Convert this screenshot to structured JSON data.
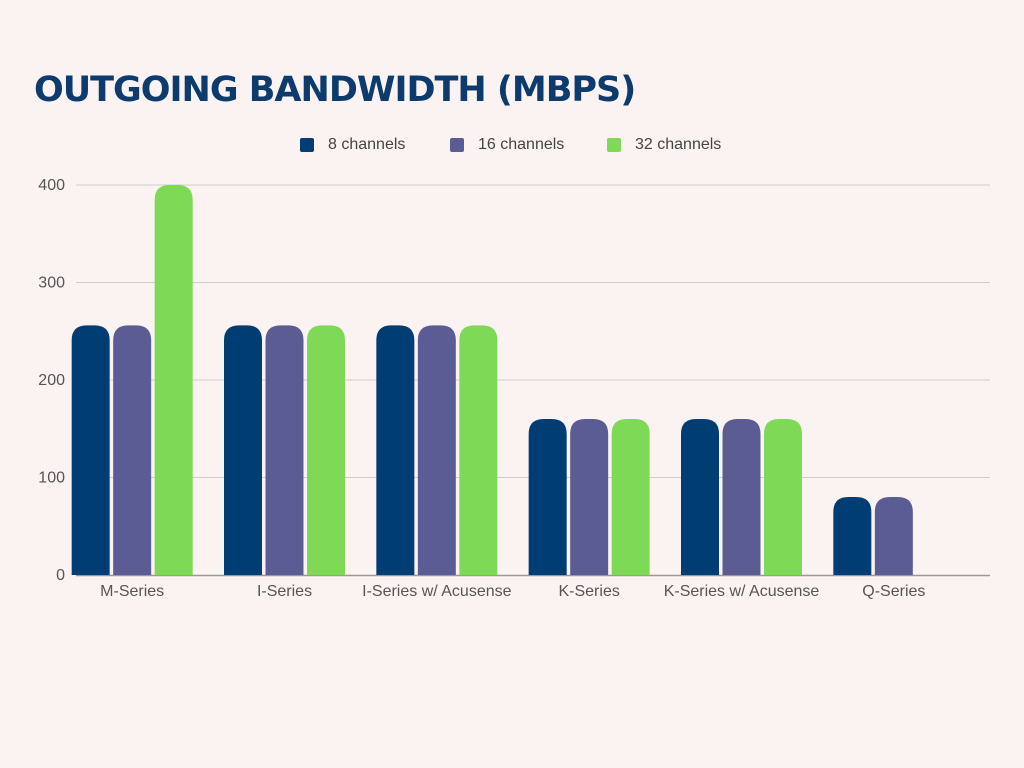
{
  "chart_data": {
    "type": "bar",
    "title": "OUTGOING BANDWIDTH (MBPS)",
    "xlabel": "",
    "ylabel": "",
    "ylim": [
      0,
      400
    ],
    "yticks": [
      0,
      100,
      200,
      300,
      400
    ],
    "grid": true,
    "legend_position": "top",
    "categories": [
      "M-Series",
      "I-Series",
      "I-Series w/ Acusense",
      "K-Series",
      "K-Series w/ Acusense",
      "Q-Series"
    ],
    "series": [
      {
        "name": "8 channels",
        "color": "#003d73",
        "values": [
          256,
          256,
          256,
          160,
          160,
          80
        ]
      },
      {
        "name": "16 channels",
        "color": "#5b5c94",
        "values": [
          256,
          256,
          256,
          160,
          160,
          80
        ]
      },
      {
        "name": "32 channels",
        "color": "#7ed957",
        "values": [
          400,
          256,
          256,
          160,
          160,
          null
        ]
      }
    ]
  }
}
